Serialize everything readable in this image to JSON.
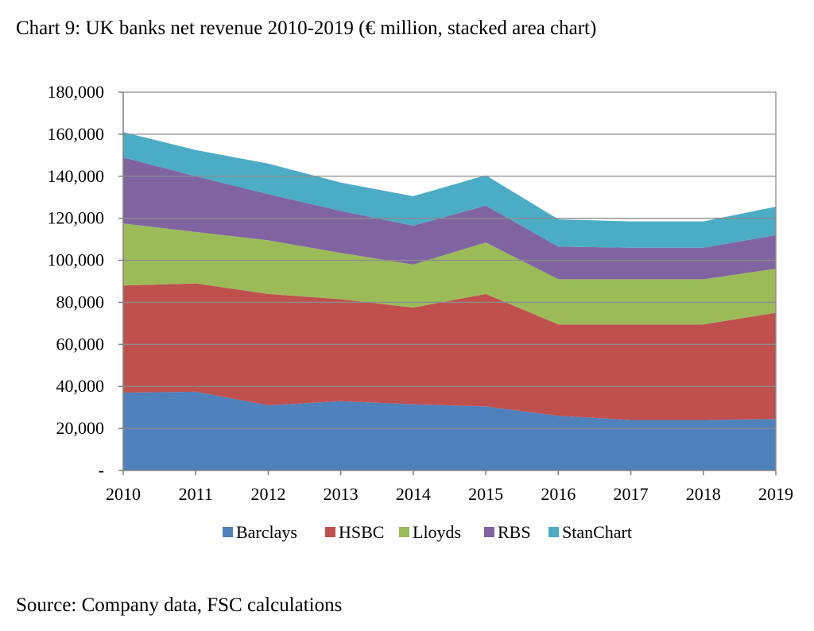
{
  "title": "Chart 9: UK banks net revenue 2010-2019 (€ million, stacked area chart)",
  "source": "Source: Company data, FSC calculations",
  "chart_data": {
    "type": "area",
    "stacked": true,
    "title": "Chart 9: UK banks net revenue 2010-2019 (€ million, stacked area chart)",
    "xlabel": "",
    "ylabel": "",
    "categories": [
      "2010",
      "2011",
      "2012",
      "2013",
      "2014",
      "2015",
      "2016",
      "2017",
      "2018",
      "2019"
    ],
    "ylim": [
      0,
      180000
    ],
    "yticks": [
      0,
      20000,
      40000,
      60000,
      80000,
      100000,
      120000,
      140000,
      160000,
      180000
    ],
    "ytick_labels": [
      "-",
      "20,000",
      "40,000",
      "60,000",
      "80,000",
      "100,000",
      "120,000",
      "140,000",
      "160,000",
      "180,000"
    ],
    "grid": true,
    "legend_position": "bottom",
    "series": [
      {
        "name": "Barclays",
        "color": "#4f81bd",
        "values": [
          37000,
          37500,
          31000,
          33000,
          31500,
          30500,
          26000,
          24000,
          24000,
          24500
        ]
      },
      {
        "name": "HSBC",
        "color": "#c0504d",
        "values": [
          51000,
          51500,
          53000,
          48500,
          46000,
          53500,
          43500,
          45500,
          45500,
          50500
        ]
      },
      {
        "name": "Lloyds",
        "color": "#9bbb59",
        "values": [
          29500,
          24500,
          25500,
          22000,
          20500,
          24500,
          21500,
          21500,
          21500,
          21000
        ]
      },
      {
        "name": "RBS",
        "color": "#8064a2",
        "values": [
          31500,
          26500,
          22000,
          20000,
          18500,
          17500,
          15500,
          15000,
          15000,
          16000
        ]
      },
      {
        "name": "StanChart",
        "color": "#4bacc6",
        "values": [
          12000,
          12500,
          14500,
          13500,
          14000,
          14500,
          13000,
          12500,
          12500,
          13500
        ]
      }
    ]
  }
}
